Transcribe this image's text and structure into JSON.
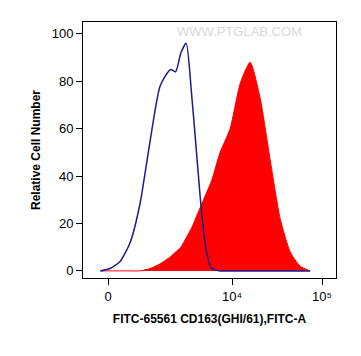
{
  "chart_data": {
    "type": "line",
    "x_label": "FITC-65561 CD163(GHI/61),FITC-A",
    "y_label": "Relative Cell Number",
    "annotations": [
      "WWW.PTGLAB.COM"
    ],
    "x": [
      -170,
      40,
      260,
      500,
      760,
      1090,
      1480,
      1990,
      2290,
      2640,
      3040,
      3500,
      3990,
      4550,
      5180,
      5900,
      7360,
      9510,
      12300,
      15900,
      20500,
      26500,
      34300,
      44300,
      57100,
      73800
    ],
    "series": [
      {
        "type": "line",
        "color": "#1c1c8a",
        "values": [
          0,
          1,
          4,
          12,
          28,
          55,
          78,
          85,
          84,
          92,
          96,
          75,
          50,
          25,
          8,
          1,
          0,
          0,
          0,
          0,
          0,
          0,
          0,
          0,
          0,
          0
        ]
      },
      {
        "type": "area",
        "color": "#ff0000",
        "values": [
          0,
          0,
          0,
          0,
          0,
          1,
          3,
          6,
          8,
          10,
          14,
          18,
          23,
          28,
          33,
          38,
          50,
          60,
          79,
          88,
          73,
          47,
          22,
          8,
          2,
          0
        ]
      }
    ],
    "xlim": [
      -580,
      143000
    ],
    "xticks": [
      0,
      {
        "value": 10000,
        "label": "10⁴"
      },
      {
        "value": 100000,
        "label": "10⁵"
      }
    ],
    "ylim": [
      -3,
      105
    ],
    "yticks": [
      0,
      20,
      40,
      60,
      80,
      100
    ],
    "grid": false
  }
}
